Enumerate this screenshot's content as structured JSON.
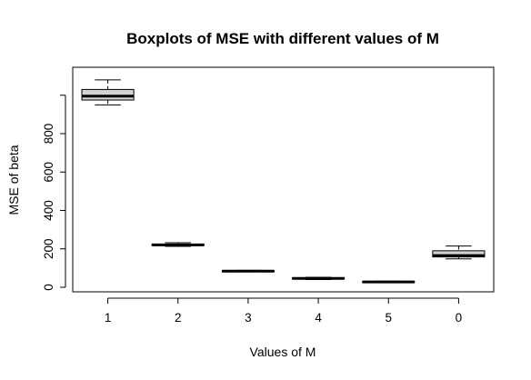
{
  "chart_data": {
    "type": "boxplot",
    "title": "Boxplots of MSE with different values of M",
    "xlabel": "Values of M",
    "ylabel": "MSE of beta",
    "categories": [
      "1",
      "2",
      "3",
      "4",
      "5",
      "0"
    ],
    "ylim": [
      -15,
      1175
    ],
    "yticks": [
      0,
      200,
      400,
      600,
      800
    ],
    "ytick_labels": [
      "0",
      "200",
      "400",
      "600",
      "800"
    ],
    "extra_y_ticks": [
      1000
    ],
    "box_fill": "#d3d3d3",
    "grid": false,
    "boxes": [
      {
        "label": "1",
        "min": 950,
        "q1": 975,
        "median": 995,
        "q3": 1030,
        "max": 1080
      },
      {
        "label": "2",
        "min": 213,
        "q1": 217,
        "median": 221,
        "q3": 225,
        "max": 232
      },
      {
        "label": "3",
        "min": 81,
        "q1": 83,
        "median": 84,
        "q3": 86,
        "max": 88
      },
      {
        "label": "4",
        "min": 40,
        "q1": 43,
        "median": 46,
        "q3": 49,
        "max": 52
      },
      {
        "label": "5",
        "min": 24,
        "q1": 26,
        "median": 28,
        "q3": 30,
        "max": 32
      },
      {
        "label": "0",
        "min": 148,
        "q1": 158,
        "median": 165,
        "q3": 190,
        "max": 215
      }
    ]
  }
}
